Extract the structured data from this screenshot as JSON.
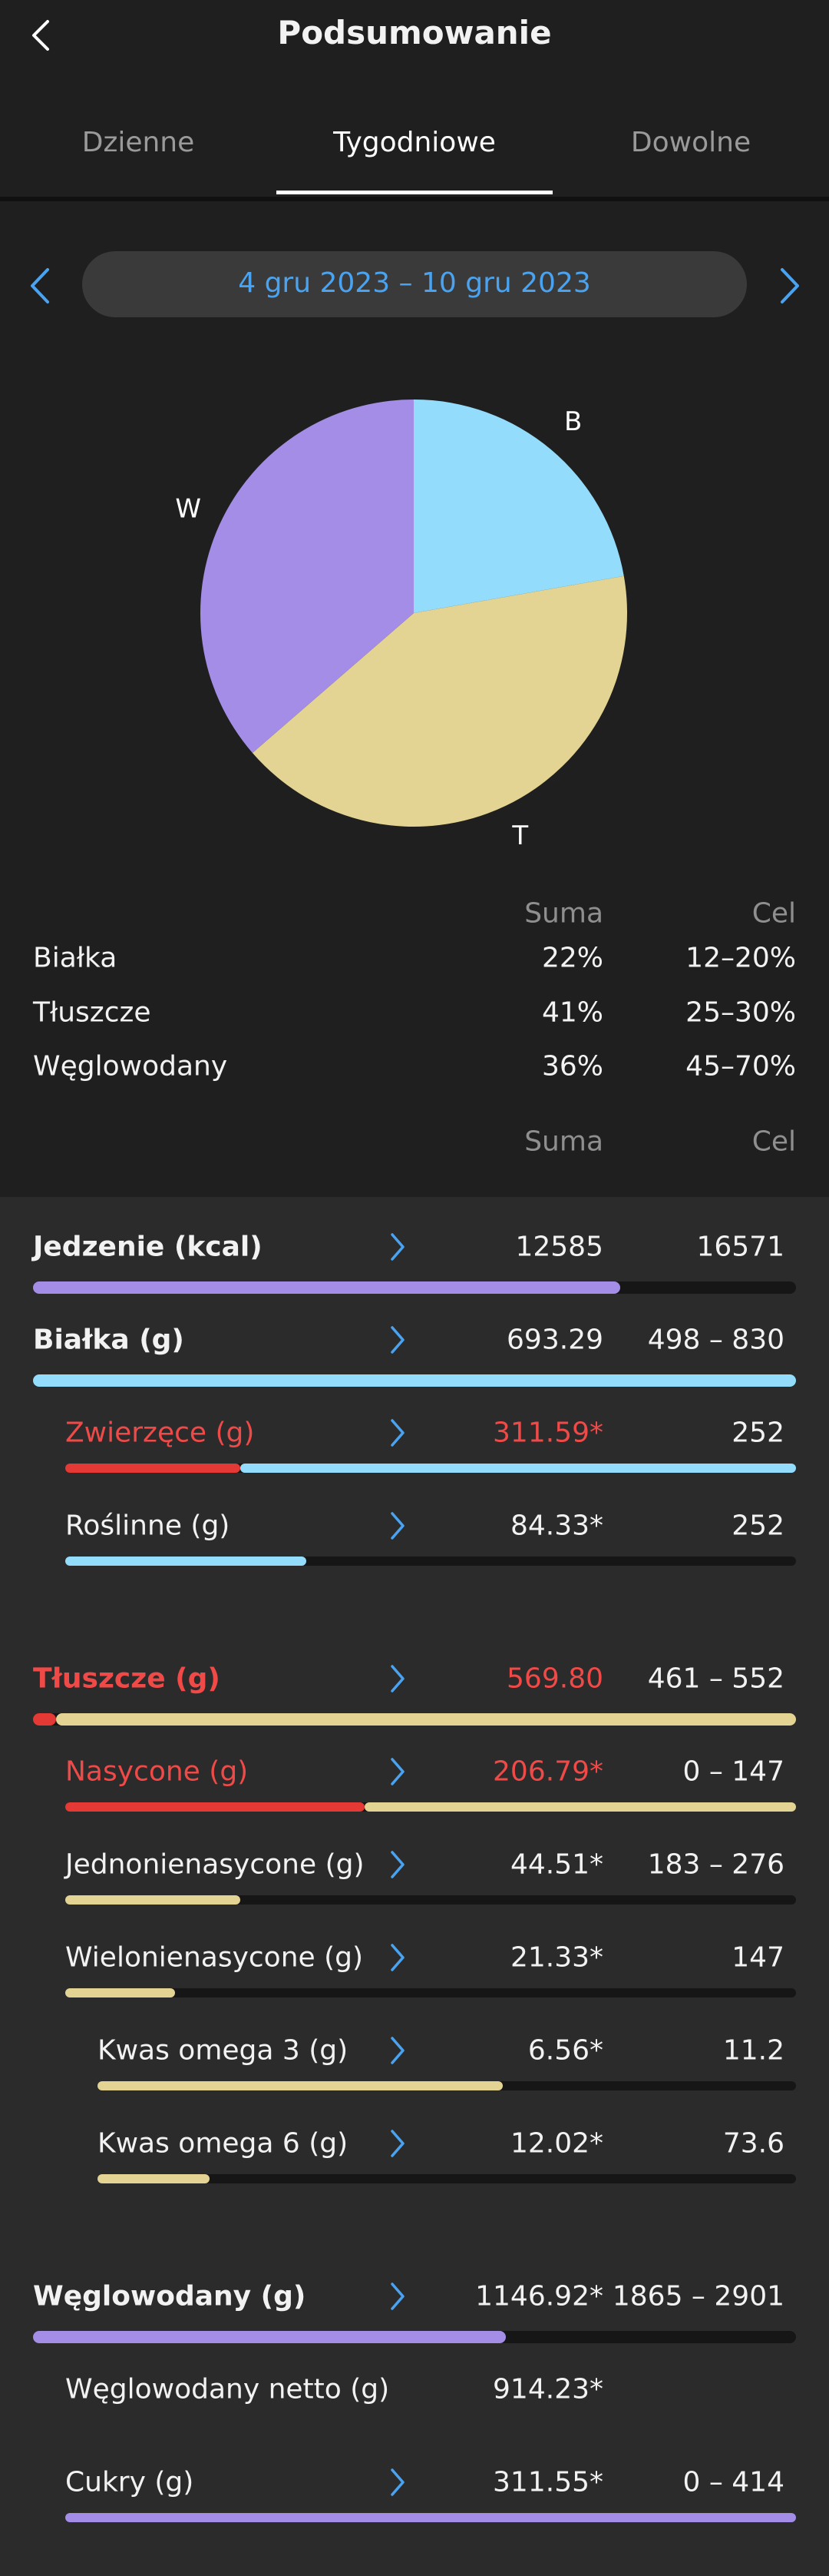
{
  "header": {
    "title": "Podsumowanie"
  },
  "tabs": [
    "Dzienne",
    "Tygodniowe",
    "Dowolne"
  ],
  "active_tab": 1,
  "date_range": "4 gru 2023 – 10 gru 2023",
  "chart_data": {
    "type": "pie",
    "categories": [
      "B",
      "T",
      "W"
    ],
    "values": [
      22,
      41,
      36
    ],
    "value_labels": [
      "22%",
      "41%",
      "36%"
    ],
    "colors": [
      "#94dcfb",
      "#e3d493",
      "#a48de6"
    ]
  },
  "macro_table": {
    "columns": [
      "Suma",
      "Cel"
    ],
    "rows": [
      {
        "label": "Białka",
        "target": "12–20%"
      },
      {
        "label": "Tłuszcze",
        "target": "25–30%"
      },
      {
        "label": "Węglowodany",
        "target": "45–70%"
      }
    ]
  },
  "list": {
    "columns": [
      "Suma",
      "Cel"
    ],
    "rows": [
      {
        "label": "Jedzenie (kcal)",
        "sum": "12585",
        "target": "16571",
        "level": 0,
        "bold": true,
        "alert": false,
        "arrow": true,
        "gap": 0,
        "bar": [
          {
            "color": "#a48de6",
            "value": 77
          }
        ]
      },
      {
        "label": "Białka (g)",
        "sum": "693.29",
        "target": "498 – 830",
        "level": 0,
        "bold": true,
        "alert": false,
        "arrow": true,
        "gap": 0,
        "bar": [
          {
            "color": "#94dcfb",
            "value": 100
          }
        ]
      },
      {
        "label": "Zwierzęce (g)",
        "sum": "311.59*",
        "target": "252",
        "level": 1,
        "bold": false,
        "alert": true,
        "arrow": true,
        "gap": 0,
        "bar": [
          {
            "color": "#e53935",
            "value": 24
          },
          {
            "color": "#94dcfb",
            "value": 76
          }
        ]
      },
      {
        "label": "Roślinne (g)",
        "sum": "84.33*",
        "target": "252",
        "level": 1,
        "bold": false,
        "alert": false,
        "arrow": true,
        "gap": 0,
        "bar": [
          {
            "color": "#94dcfb",
            "value": 33
          }
        ]
      },
      {
        "label": "Tłuszcze (g)",
        "sum": "569.80",
        "target": "461 – 552",
        "level": 0,
        "bold": true,
        "alert": true,
        "arrow": true,
        "gap": 1,
        "bar": [
          {
            "color": "#e53935",
            "value": 3
          },
          {
            "color": "#e3d493",
            "value": 97
          }
        ]
      },
      {
        "label": "Nasycone (g)",
        "sum": "206.79*",
        "target": "0 – 147",
        "level": 1,
        "bold": false,
        "alert": true,
        "arrow": true,
        "gap": 0,
        "bar": [
          {
            "color": "#e53935",
            "value": 41
          },
          {
            "color": "#e3d493",
            "value": 59
          }
        ]
      },
      {
        "label": "Jednonienasycone (g)",
        "sum": "44.51*",
        "target": "183 – 276",
        "level": 1,
        "bold": false,
        "alert": false,
        "arrow": true,
        "gap": 0,
        "bar": [
          {
            "color": "#e3d493",
            "value": 24
          }
        ]
      },
      {
        "label": "Wielonienasycone (g)",
        "sum": "21.33*",
        "target": "147",
        "level": 1,
        "bold": false,
        "alert": false,
        "arrow": true,
        "gap": 0,
        "bar": [
          {
            "color": "#e3d493",
            "value": 15
          }
        ]
      },
      {
        "label": "Kwas omega 3 (g)",
        "sum": "6.56*",
        "target": "11.2",
        "level": 2,
        "bold": false,
        "alert": false,
        "arrow": true,
        "gap": 0,
        "bar": [
          {
            "color": "#e3d493",
            "value": 58
          }
        ]
      },
      {
        "label": "Kwas omega 6 (g)",
        "sum": "12.02*",
        "target": "73.6",
        "level": 2,
        "bold": false,
        "alert": false,
        "arrow": true,
        "gap": 0,
        "bar": [
          {
            "color": "#e3d493",
            "value": 16
          }
        ]
      },
      {
        "label": "Węglowodany (g)",
        "sum": "1146.92*",
        "target": "1865 – 2901",
        "level": 0,
        "bold": true,
        "alert": false,
        "arrow": true,
        "gap": 1,
        "bar": [
          {
            "color": "#a48de6",
            "value": 62
          }
        ]
      },
      {
        "label": "Węglowodany netto (g)",
        "sum": "914.23*",
        "level": 1,
        "bold": false,
        "alert": false,
        "arrow": false,
        "gap": 0
      },
      {
        "label": "Cukry (g)",
        "sum": "311.55*",
        "target": "0 – 414",
        "level": 1,
        "bold": false,
        "alert": false,
        "arrow": true,
        "gap": 0,
        "bar": [
          {
            "color": "#a48de6",
            "value": 100
          }
        ]
      }
    ]
  }
}
